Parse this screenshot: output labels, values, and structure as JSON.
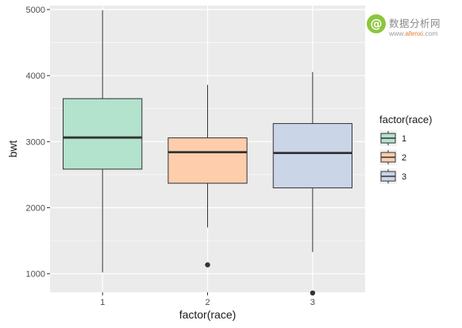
{
  "watermark": {
    "logo_glyph": "@",
    "cn_text": "数据分析网",
    "url_prefix": "www.",
    "url_brand": "afenxi",
    "url_suffix": ".com"
  },
  "chart_data": {
    "type": "boxplot",
    "title": "",
    "xlabel": "factor(race)",
    "ylabel": "bwt",
    "categories": [
      "1",
      "2",
      "3"
    ],
    "ylim": [
      720,
      5060
    ],
    "yticks": [
      1000,
      2000,
      3000,
      4000,
      5000
    ],
    "grid": true,
    "legend": {
      "title": "factor(race)",
      "position": "right",
      "entries": [
        "1",
        "2",
        "3"
      ]
    },
    "series": [
      {
        "category": "1",
        "color": "#b3e2cd",
        "whisker_low": 1021,
        "q1": 2584,
        "median": 3062,
        "q3": 3651,
        "whisker_high": 4990,
        "outliers": []
      },
      {
        "category": "2",
        "color": "#fdcdac",
        "whisker_low": 1701,
        "q1": 2370,
        "median": 2840,
        "q3": 3057,
        "whisker_high": 3860,
        "outliers": [
          1135
        ]
      },
      {
        "category": "3",
        "color": "#cbd5e8",
        "whisker_low": 1330,
        "q1": 2300,
        "median": 2828,
        "q3": 3274,
        "whisker_high": 4054,
        "outliers": [
          709
        ]
      }
    ]
  }
}
